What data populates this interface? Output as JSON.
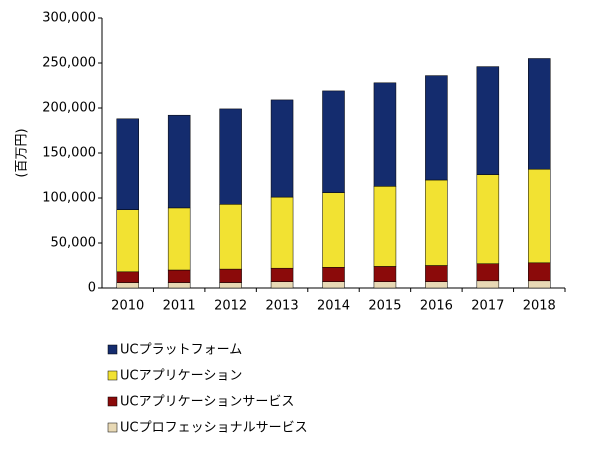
{
  "chart_data": {
    "type": "stacked-bar",
    "y_label": "(百万円)",
    "categories": [
      "2010",
      "2011",
      "2012",
      "2013",
      "2014",
      "2015",
      "2016",
      "2017",
      "2018"
    ],
    "series": [
      {
        "name": "UCプロフェッショナルサービス",
        "color": "#e8d9b5",
        "values": [
          6000,
          6000,
          6000,
          7000,
          7000,
          7000,
          7000,
          8000,
          8000
        ]
      },
      {
        "name": "UCアプリケーションサービス",
        "color": "#8b0a0a",
        "values": [
          12000,
          14000,
          15000,
          15000,
          16000,
          17000,
          18000,
          19000,
          20000
        ]
      },
      {
        "name": "UCアプリケーション",
        "color": "#f2e232",
        "values": [
          69000,
          69000,
          72000,
          79000,
          83000,
          89000,
          95000,
          99000,
          104000
        ]
      },
      {
        "name": "UCプラットフォーム",
        "color": "#142c6e",
        "values": [
          101000,
          103000,
          106000,
          108000,
          113000,
          115000,
          116000,
          120000,
          123000
        ]
      }
    ],
    "ylim": [
      0,
      300000
    ],
    "yticks": [
      0,
      {
        "value": 50000,
        "label": "50,000"
      },
      {
        "value": 100000,
        "label": "100,000"
      },
      {
        "value": 150000,
        "label": "150,000"
      },
      {
        "value": 200000,
        "label": "200,000"
      },
      {
        "value": 250000,
        "label": "250,000"
      },
      {
        "value": 300000,
        "label": "300,000"
      }
    ],
    "grid": false,
    "legend": "bottom"
  }
}
